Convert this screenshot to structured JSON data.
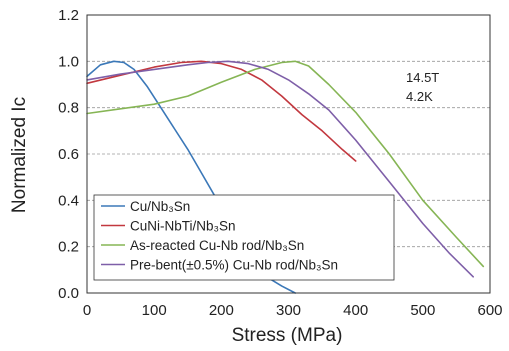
{
  "chart_data": {
    "type": "line",
    "title": "",
    "xlabel": "Stress (MPa)",
    "ylabel": "Normalized Ic",
    "xlim": [
      0,
      600
    ],
    "ylim": [
      0,
      1.2
    ],
    "xticks": [
      "0",
      "100",
      "200",
      "300",
      "400",
      "500",
      "600"
    ],
    "yticks": [
      "0.0",
      "0.2",
      "0.4",
      "0.6",
      "0.8",
      "1.0",
      "1.2"
    ],
    "grid": "horizontal dashed",
    "legend_position": "bottom-left",
    "annotations": [
      "14.5T",
      "4.2K"
    ],
    "series": [
      {
        "name": "Cu/Nb₃Sn",
        "color": "#3b78b8",
        "x": [
          0,
          20,
          40,
          55,
          70,
          90,
          110,
          130,
          150,
          170,
          190,
          210,
          230,
          250,
          270,
          290,
          310
        ],
        "y": [
          0.935,
          0.985,
          1.0,
          0.995,
          0.965,
          0.89,
          0.8,
          0.71,
          0.62,
          0.52,
          0.42,
          0.31,
          0.2,
          0.12,
          0.065,
          0.03,
          0.0
        ]
      },
      {
        "name": "CuNi-NbTi/Nb₃Sn",
        "color": "#c2383f",
        "x": [
          0,
          50,
          100,
          140,
          170,
          200,
          230,
          260,
          290,
          320,
          350,
          380,
          400
        ],
        "y": [
          0.905,
          0.94,
          0.975,
          0.995,
          1.0,
          0.99,
          0.965,
          0.92,
          0.85,
          0.77,
          0.7,
          0.62,
          0.57
        ]
      },
      {
        "name": "As-reacted Cu-Nb rod/Nb₃Sn",
        "color": "#86b555",
        "x": [
          0,
          50,
          100,
          150,
          200,
          250,
          290,
          310,
          330,
          360,
          400,
          450,
          500,
          550,
          590
        ],
        "y": [
          0.775,
          0.795,
          0.815,
          0.85,
          0.91,
          0.965,
          0.995,
          1.0,
          0.98,
          0.9,
          0.78,
          0.6,
          0.4,
          0.24,
          0.115
        ]
      },
      {
        "name": "Pre-bent(±0.5%) Cu-Nb rod/Nb₃Sn",
        "color": "#7e5fa8",
        "x": [
          0,
          50,
          100,
          150,
          180,
          210,
          240,
          270,
          300,
          330,
          360,
          400,
          450,
          500,
          540,
          575
        ],
        "y": [
          0.92,
          0.945,
          0.965,
          0.985,
          0.995,
          1.0,
          0.99,
          0.965,
          0.92,
          0.86,
          0.79,
          0.66,
          0.48,
          0.3,
          0.17,
          0.07
        ]
      }
    ]
  }
}
